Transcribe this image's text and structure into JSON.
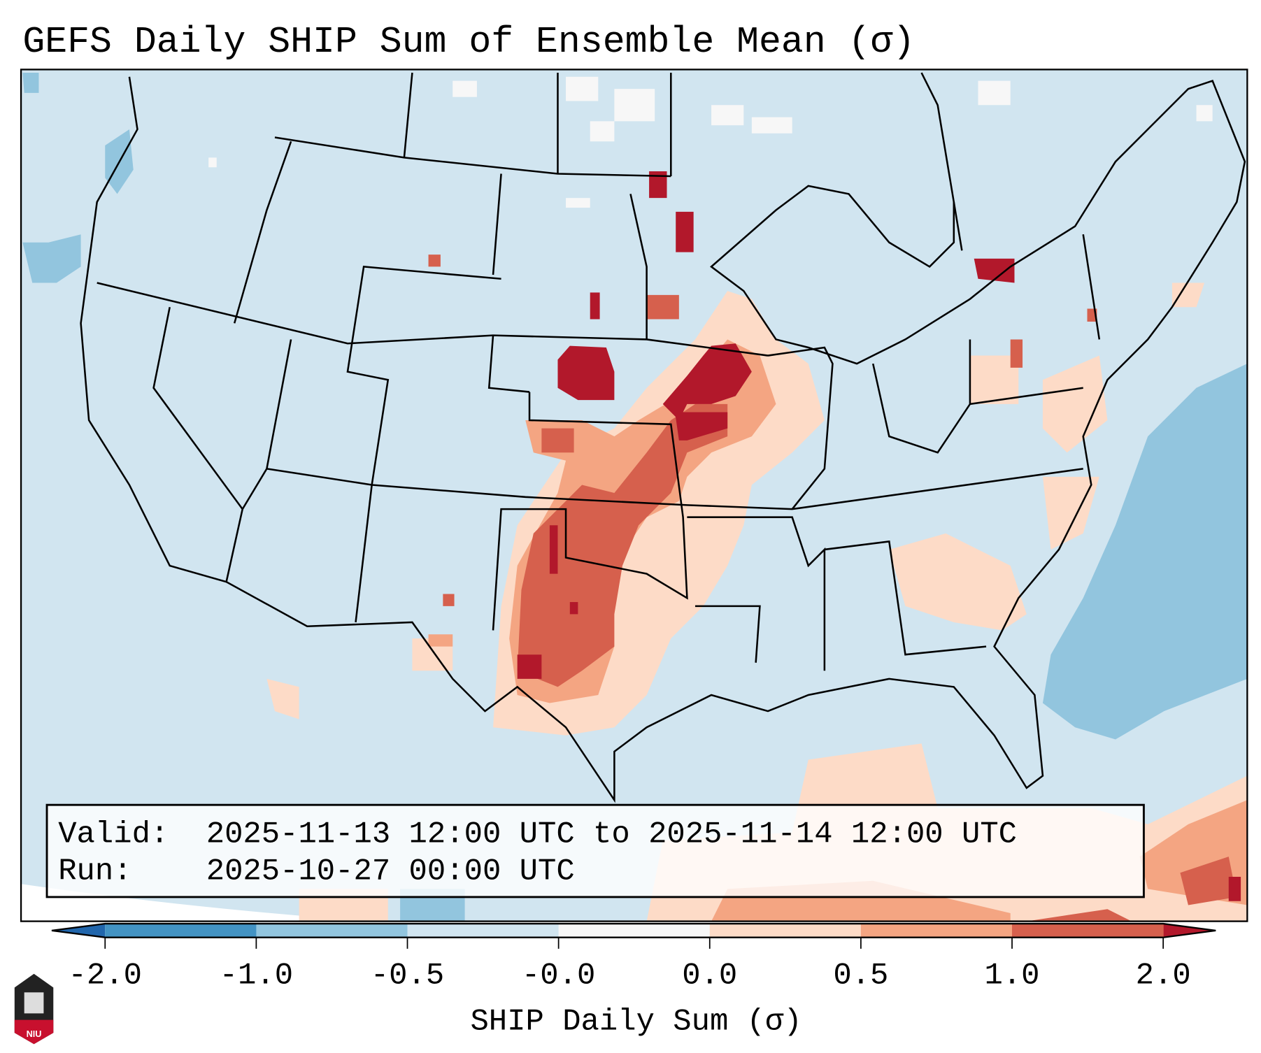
{
  "title": "GEFS Daily SHIP Sum of Ensemble Mean (σ)",
  "info_box": {
    "valid_label": "Valid:",
    "valid_value": "2025-11-13 12:00 UTC to 2025-11-14 12:00 UTC",
    "run_label": "Run:",
    "run_value": "2025-10-27 00:00 UTC"
  },
  "colorbar": {
    "label": "SHIP Daily Sum (σ)",
    "ticks": [
      "-2.0",
      "-1.0",
      "-0.5",
      "-0.0",
      "0.0",
      "0.5",
      "1.0",
      "2.0"
    ],
    "colors": {
      "extend_low": "#2166ac",
      "c1": "#4393c3",
      "c2": "#92c5de",
      "c3": "#d1e5f0",
      "c4": "#f7f7f7",
      "c5": "#fddbc7",
      "c6": "#f4a582",
      "c7": "#d6604d",
      "extend_high": "#b2182b"
    }
  },
  "logo": {
    "text": "NIU"
  }
}
